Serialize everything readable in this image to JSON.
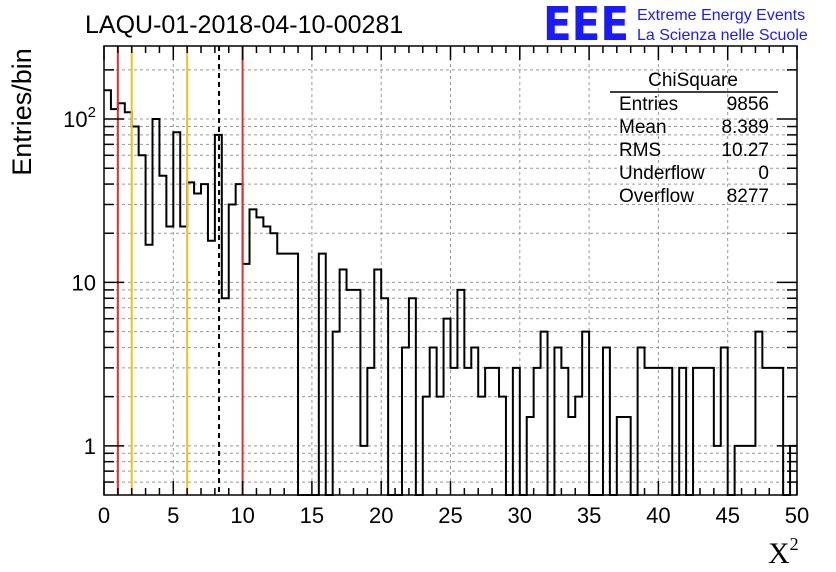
{
  "chart_data": {
    "type": "histogram",
    "title": "LAQU-01-2018-04-10-00281",
    "xlabel": "X",
    "xlabel_sup": "2",
    "ylabel": "Entries/bin",
    "xlim": [
      0,
      50
    ],
    "ylim": [
      0.5,
      280
    ],
    "yscale": "log",
    "grid": true,
    "x_ticks": [
      0,
      5,
      10,
      15,
      20,
      25,
      30,
      35,
      40,
      45,
      50
    ],
    "y_ticks": [
      {
        "value": 1,
        "label": "1"
      },
      {
        "value": 10,
        "label": "10"
      },
      {
        "value": 100,
        "label": "10",
        "sup": "2"
      }
    ],
    "bin_width": 0.5,
    "bin_values": [
      150,
      115,
      125,
      110,
      90,
      60,
      17,
      100,
      45,
      22,
      83,
      22,
      41,
      35,
      40,
      18,
      80,
      8,
      30,
      40,
      13,
      28,
      25,
      22,
      20,
      15,
      15,
      15,
      0,
      0,
      0,
      15,
      0,
      5,
      12,
      9,
      9,
      1,
      3,
      12,
      8,
      0,
      0,
      4,
      8,
      0,
      2,
      4,
      2,
      6,
      3,
      9,
      3,
      4,
      2,
      3,
      3,
      2,
      0,
      3,
      0,
      1.5,
      3,
      5,
      0,
      4,
      3,
      1.5,
      2,
      5,
      0,
      0,
      4,
      0,
      1.5,
      1.5,
      0,
      4,
      3,
      3,
      3,
      3,
      0,
      3,
      0,
      3,
      3,
      3,
      1,
      4,
      0,
      1,
      1,
      1,
      5,
      3,
      3,
      3,
      0,
      1
    ],
    "vertical_lines": [
      {
        "x": 1,
        "color": "#e03030",
        "style": "solid"
      },
      {
        "x": 2,
        "color": "#f0c020",
        "style": "solid"
      },
      {
        "x": 6,
        "color": "#f0c020",
        "style": "solid"
      },
      {
        "x": 8.3,
        "color": "#000000",
        "style": "dashed"
      },
      {
        "x": 10,
        "color": "#e03030",
        "style": "solid"
      }
    ],
    "stats": {
      "name": "ChiSquare",
      "rows": [
        {
          "label": "Entries",
          "value": "9856"
        },
        {
          "label": "Mean",
          "value": "8.389"
        },
        {
          "label": "RMS",
          "value": "10.27"
        },
        {
          "label": "Underflow",
          "value": "0"
        },
        {
          "label": "Overflow",
          "value": "8277"
        }
      ]
    },
    "logo": {
      "text": "EEE",
      "line1": "Extreme Energy Events",
      "line2": "La Scienza nelle Scuole"
    }
  }
}
